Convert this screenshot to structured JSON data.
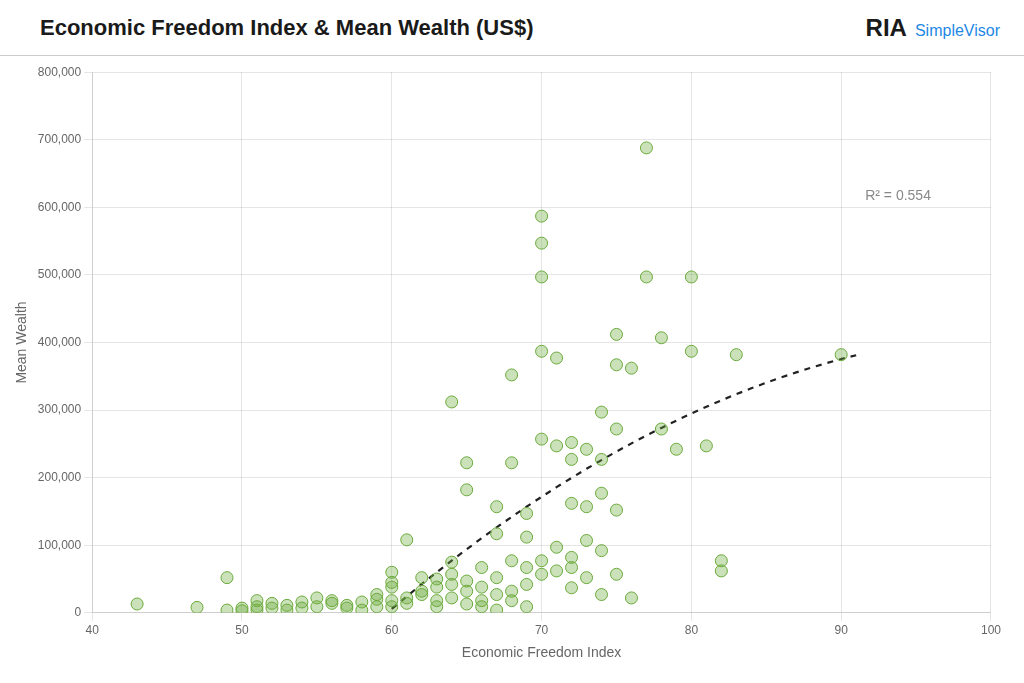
{
  "chart_data": {
    "type": "scatter",
    "title": "Economic Freedom Index & Mean Wealth (US$)",
    "x_label": "Economic Freedom Index",
    "y_label": "Mean Wealth",
    "annotations": [
      "R² = 0.554",
      "RIA",
      "SimpleVisor"
    ],
    "xlim": [
      40,
      100
    ],
    "ylim": [
      0,
      800000
    ],
    "xticks": [
      40,
      50,
      60,
      70,
      80,
      90,
      100
    ],
    "yticks": [
      0,
      {
        "value": 100000,
        "label": "100,000"
      },
      {
        "value": 200000,
        "label": "200,000"
      },
      {
        "value": 300000,
        "label": "300,000"
      },
      {
        "value": 400000,
        "label": "400,000"
      },
      {
        "value": 500000,
        "label": "500,000"
      },
      {
        "value": 600000,
        "label": "600,000"
      },
      {
        "value": 700000,
        "label": "700,000"
      },
      {
        "value": 800000,
        "label": "800,000"
      }
    ],
    "grid": true,
    "series": [
      {
        "type": "scatter",
        "color": "#6aaa3a",
        "marker": "circle",
        "x": [
          43,
          47,
          49,
          49,
          50,
          50,
          51,
          51,
          51,
          52,
          52,
          53,
          53,
          54,
          54,
          55,
          55,
          56,
          56,
          57,
          57,
          58,
          58,
          59,
          59,
          59,
          60,
          60,
          60,
          60,
          60,
          61,
          61,
          61,
          62,
          62,
          62,
          63,
          63,
          63,
          63,
          64,
          64,
          64,
          64,
          64,
          65,
          65,
          65,
          65,
          65,
          66,
          66,
          66,
          66,
          67,
          67,
          67,
          67,
          67,
          68,
          68,
          68,
          68,
          68,
          69,
          69,
          69,
          69,
          69,
          70,
          70,
          70,
          70,
          70,
          70,
          70,
          71,
          71,
          71,
          71,
          72,
          72,
          72,
          72,
          72,
          72,
          73,
          73,
          73,
          73,
          74,
          74,
          74,
          74,
          74,
          75,
          75,
          75,
          75,
          75,
          76,
          76,
          77,
          77,
          78,
          78,
          79,
          80,
          80,
          81,
          82,
          82,
          83,
          90
        ],
        "values": [
          13000,
          8000,
          52000,
          4000,
          7000,
          3000,
          4000,
          9000,
          18000,
          7000,
          14000,
          4000,
          11000,
          16000,
          7000,
          22000,
          9000,
          14000,
          18000,
          11000,
          7000,
          16000,
          4000,
          9000,
          20000,
          27000,
          60000,
          38000,
          18000,
          9000,
          45000,
          108000,
          14000,
          22000,
          32000,
          52000,
          27000,
          38000,
          18000,
          9000,
          50000,
          312000,
          42000,
          57000,
          75000,
          22000,
          182000,
          47000,
          32000,
          222000,
          13000,
          67000,
          38000,
          18000,
          9000,
          157000,
          117000,
          52000,
          27000,
          4000,
          352000,
          222000,
          77000,
          32000,
          18000,
          112000,
          67000,
          42000,
          147000,
          9000,
          587000,
          547000,
          497000,
          387000,
          257000,
          77000,
          57000,
          377000,
          247000,
          97000,
          62000,
          252000,
          227000,
          162000,
          82000,
          67000,
          37000,
          242000,
          157000,
          107000,
          52000,
          297000,
          227000,
          177000,
          92000,
          27000,
          412000,
          367000,
          272000,
          57000,
          152000,
          362000,
          22000,
          688000,
          497000,
          407000,
          272000,
          242000,
          497000,
          387000,
          247000,
          62000,
          77000,
          382000,
          382000
        ]
      },
      {
        "type": "line",
        "color": "#222222",
        "line_style": "dashed",
        "x": [
          60,
          61,
          62,
          63,
          64,
          65,
          66,
          67,
          68,
          69,
          70,
          71,
          72,
          73,
          74,
          75,
          76,
          77,
          78,
          79,
          80,
          81,
          82,
          83,
          84,
          85,
          86,
          87,
          88,
          89,
          90,
          91
        ],
        "values": [
          5800,
          24300,
          42400,
          60000,
          77200,
          94000,
          110400,
          126400,
          141900,
          157000,
          171600,
          185900,
          199700,
          213100,
          226000,
          238600,
          250700,
          262400,
          273600,
          284500,
          294900,
          304800,
          314400,
          323500,
          332200,
          340500,
          348300,
          355800,
          362800,
          369300,
          375500,
          381200
        ]
      }
    ]
  }
}
